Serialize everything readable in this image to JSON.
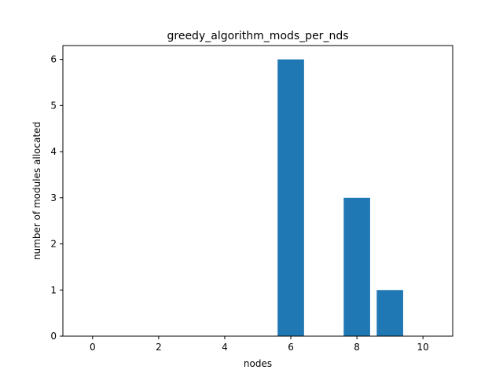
{
  "chart_data": {
    "type": "bar",
    "title": "greedy_algorithm_mods_per_nds",
    "xlabel": "nodes",
    "ylabel": "number of modules allocated",
    "x": [
      0,
      1,
      2,
      3,
      4,
      5,
      6,
      7,
      8,
      9,
      10
    ],
    "values": [
      0,
      0,
      0,
      0,
      0,
      0,
      6,
      0,
      3,
      1,
      0
    ],
    "xlim": [
      -0.9,
      10.9
    ],
    "ylim": [
      0,
      6.3
    ],
    "xticks": [
      0,
      2,
      4,
      6,
      8,
      10
    ],
    "yticks": [
      0,
      1,
      2,
      3,
      4,
      5,
      6
    ],
    "bar_width": 0.8,
    "bar_color": "#1f77b4",
    "grid": false,
    "legend": "none"
  }
}
